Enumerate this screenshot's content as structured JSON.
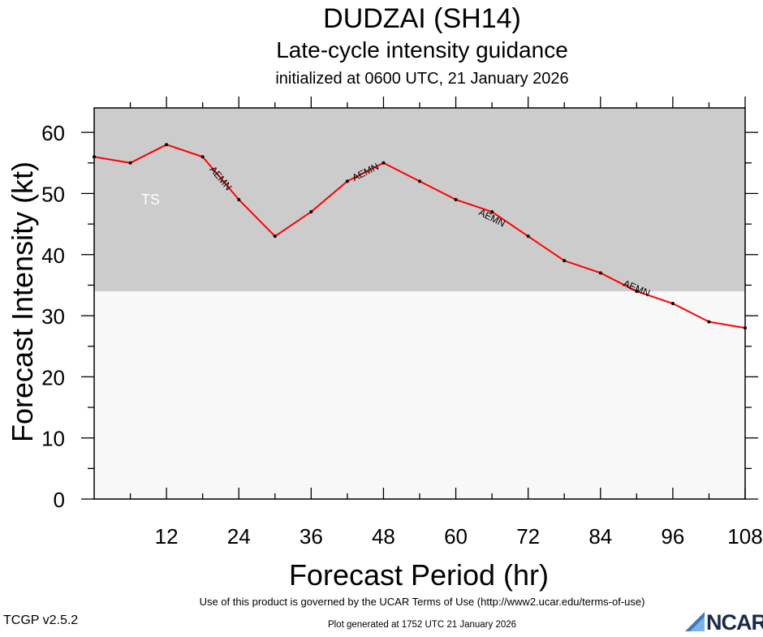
{
  "chart_data": {
    "type": "line",
    "title": "DUDZAI (SH14)",
    "subtitle": "Late-cycle intensity guidance",
    "subtitle2": "initialized at 0600 UTC, 21 January 2026",
    "xlabel": "Forecast Period (hr)",
    "ylabel": "Forecast Intensity (kt)",
    "xlim": [
      0,
      108
    ],
    "ylim": [
      0,
      64
    ],
    "xticks": [
      12,
      24,
      36,
      48,
      60,
      72,
      84,
      96,
      108
    ],
    "yticks": [
      0,
      10,
      20,
      30,
      40,
      50,
      60
    ],
    "bands": [
      {
        "label": "TS",
        "from": 34,
        "to": 64,
        "color": "#cccccc"
      },
      {
        "label": "",
        "from": 0,
        "to": 34,
        "color": "#f8f8f8"
      }
    ],
    "series": [
      {
        "name": "AEMN",
        "color": "#ff0000",
        "x": [
          0,
          6,
          12,
          18,
          24,
          30,
          36,
          42,
          48,
          54,
          60,
          66,
          72,
          78,
          84,
          90,
          96,
          102,
          108
        ],
        "values": [
          56,
          55,
          58,
          56,
          49,
          43,
          47,
          52,
          55,
          52,
          49,
          47,
          43,
          39,
          37,
          34,
          32,
          29,
          28
        ]
      }
    ]
  },
  "footer": {
    "terms": "Use of this product is governed by the UCAR Terms of Use (http://www2.ucar.edu/terms-of-use)",
    "version": "TCGP v2.5.2",
    "generated": "Plot generated at 1752 UTC   21 January 2026",
    "logo": "NCAR"
  }
}
